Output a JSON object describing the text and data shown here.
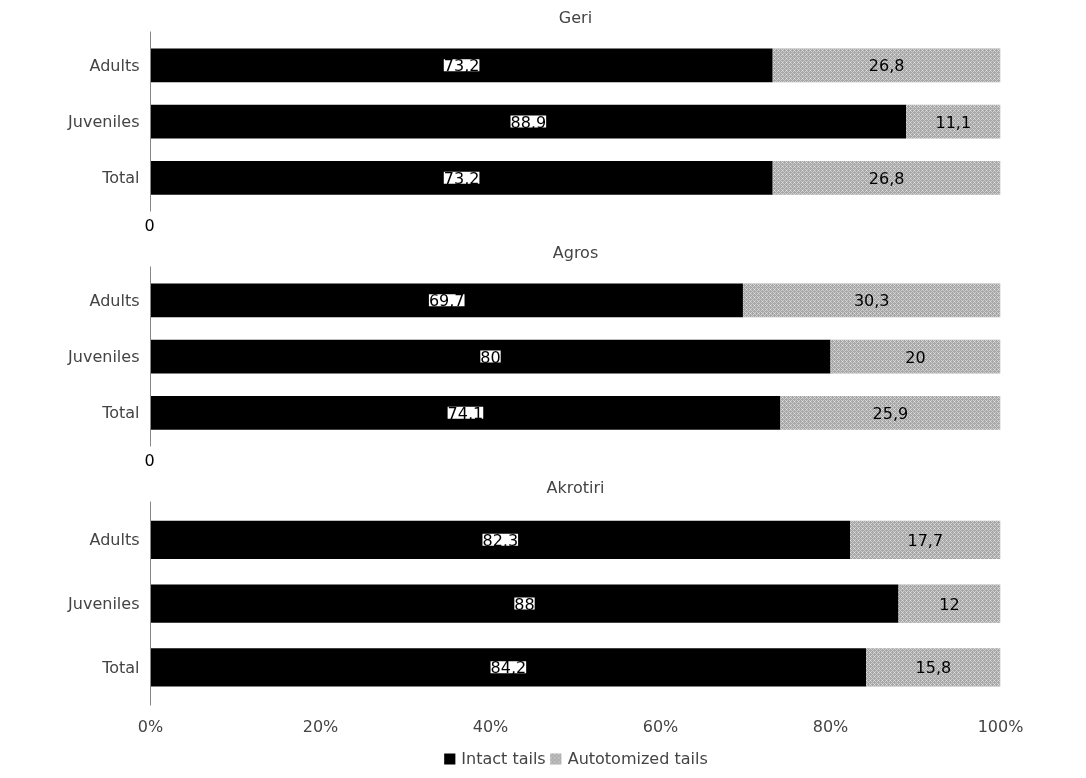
{
  "chart_data": [
    {
      "type": "bar",
      "orientation": "horizontal",
      "stacked": true,
      "title": "Geri",
      "categories": [
        "Adults",
        "Juveniles",
        "Total"
      ],
      "series": [
        {
          "color": "#000000",
          "values": [
            73.2,
            88.9,
            73.2
          ],
          "value_labels": [
            "73,2",
            "88,9",
            "73,2"
          ]
        },
        {
          "color": "#a6a6a6",
          "values": [
            26.8,
            11.1,
            26.8
          ],
          "value_labels": [
            "26,8",
            "11,1",
            "26,8"
          ]
        }
      ],
      "annotations": [
        "0"
      ],
      "grid": false,
      "legend": false
    },
    {
      "type": "bar",
      "orientation": "horizontal",
      "stacked": true,
      "title": "Agros",
      "categories": [
        "Adults",
        "Juveniles",
        "Total"
      ],
      "series": [
        {
          "color": "#000000",
          "values": [
            69.7,
            80,
            74.1
          ],
          "value_labels": [
            "69,7",
            "80",
            "74,1"
          ]
        },
        {
          "color": "#a6a6a6",
          "values": [
            30.3,
            20,
            25.9
          ],
          "value_labels": [
            "30,3",
            "20",
            "25,9"
          ]
        }
      ],
      "annotations": [
        "0"
      ],
      "grid": false,
      "legend": false
    },
    {
      "type": "bar",
      "orientation": "horizontal",
      "stacked": true,
      "title": "Akrotiri",
      "categories": [
        "Adults",
        "Juveniles",
        "Total"
      ],
      "series": [
        {
          "name": "Intact tails",
          "color": "#000000",
          "values": [
            82.3,
            88,
            84.2
          ],
          "value_labels": [
            "82,3",
            "88",
            "84,2"
          ]
        },
        {
          "name": "Autotomized tails",
          "color": "#a6a6a6",
          "values": [
            17.7,
            12,
            15.8
          ],
          "value_labels": [
            "17,7",
            "12",
            "15,8"
          ]
        }
      ],
      "xlim": [
        0,
        100
      ],
      "xticks": [
        {
          "value": 0,
          "label": "0%"
        },
        {
          "value": 20,
          "label": "20%"
        },
        {
          "value": 40,
          "label": "40%"
        },
        {
          "value": 60,
          "label": "60%"
        },
        {
          "value": 80,
          "label": "80%"
        },
        {
          "value": 100,
          "label": "100%"
        }
      ],
      "grid": false,
      "legend": "bottom"
    }
  ]
}
